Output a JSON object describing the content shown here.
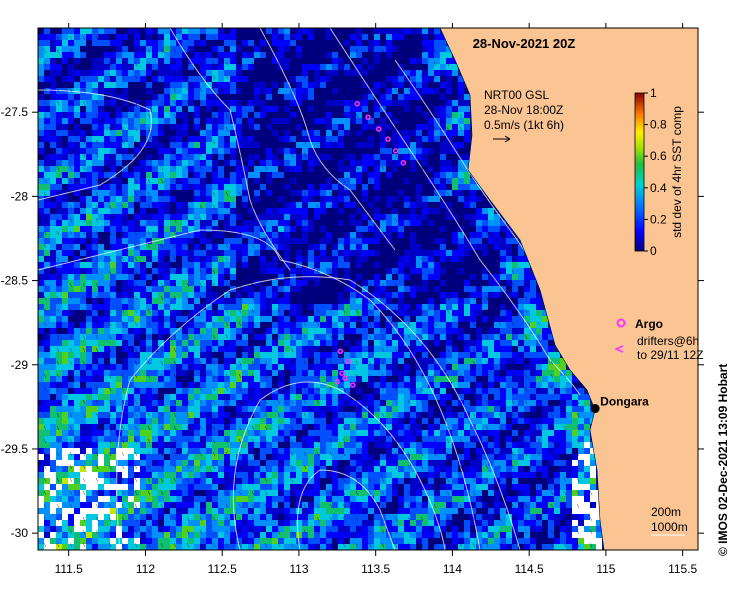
{
  "title": "28-Nov-2021 20Z",
  "map": {
    "lon_range": [
      111.3,
      115.6
    ],
    "lat_range": [
      -30.1,
      -27.0
    ],
    "xticks": [
      111.5,
      112,
      112.5,
      113,
      113.5,
      114,
      114.5,
      115,
      115.5
    ],
    "xtick_labels": [
      "111.5",
      "112",
      "112.5",
      "113",
      "113.5",
      "114",
      "114.5",
      "115",
      "115.5"
    ],
    "yticks": [
      -27.5,
      -28,
      -28.5,
      -29,
      -29.5,
      -30
    ],
    "ytick_labels": [
      "-27.5",
      "-28",
      "-28.5",
      "-29",
      "-29.5",
      "-30"
    ],
    "colors": {
      "land": "#fbc493",
      "marker": "#ff33ff",
      "contour": "#ffffff"
    }
  },
  "current_legend": {
    "line1": "NRT00 GSL",
    "line2": "28-Nov 18:00Z",
    "line3": "0.5m/s (1kt 6h)"
  },
  "colorbar": {
    "label": "std dev of 4hr SST comp",
    "range": [
      0,
      1
    ],
    "ticks": [
      0,
      0.2,
      0.4,
      0.6,
      0.8,
      1
    ],
    "tick_labels": [
      "0",
      "0.2",
      "0.4",
      "0.6",
      "0.8",
      "1"
    ]
  },
  "marker_legend": {
    "argo_label": "Argo",
    "drifter_line1": "drifters@6h",
    "drifter_line2": "to 29/11 12Z"
  },
  "place": {
    "name": "Dongara",
    "lon": 114.93,
    "lat": -29.26
  },
  "depth_legend": {
    "line1": "200m",
    "line2": "1000m"
  },
  "credit": "© IMOS 02-Dec-2021 13:09 Hobart",
  "drifter_tracks": [
    {
      "points": [
        [
          113.38,
          -27.45
        ],
        [
          113.45,
          -27.53
        ],
        [
          113.52,
          -27.6
        ],
        [
          113.58,
          -27.66
        ],
        [
          113.63,
          -27.73
        ],
        [
          113.68,
          -27.8
        ]
      ]
    },
    {
      "points": [
        [
          113.25,
          -29.1
        ],
        [
          113.3,
          -29.08
        ],
        [
          113.35,
          -29.12
        ],
        [
          113.28,
          -29.05
        ],
        [
          113.32,
          -28.98
        ],
        [
          113.27,
          -28.92
        ]
      ]
    }
  ]
}
